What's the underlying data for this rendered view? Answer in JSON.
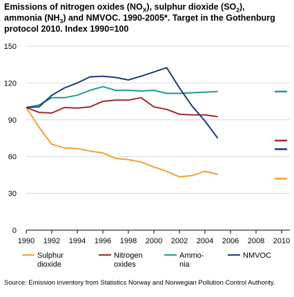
{
  "title": {
    "line1_a": "Emissions of nitrogen oxides (NO",
    "line1_sub_a": "X",
    "line1_b": "), sulphur dioxide (SO",
    "line1_sub_b": "2",
    "line1_c": "),",
    "line2_a": "ammonia (NH",
    "line2_sub": "3",
    "line2_b": ") and NMVOC. 1990-2005*. Target in the Gothenburg",
    "line3": "protocol 2010. Index 1990=100"
  },
  "source": "Source: Emission inventory from Statistics Norway and Norwegian Pollution Control Authority.",
  "chart_data": {
    "type": "line",
    "x": [
      1990,
      1991,
      1992,
      1993,
      1994,
      1995,
      1996,
      1997,
      1998,
      1999,
      2000,
      2001,
      2002,
      2003,
      2004,
      2005
    ],
    "xlim": [
      1990,
      2010
    ],
    "x_ticks": [
      "1990",
      "1992",
      "1994",
      "1996",
      "1998",
      "2000",
      "2002",
      "2004",
      "2006",
      "2008",
      "2010"
    ],
    "ylim": [
      0,
      150
    ],
    "y_ticks": [
      "0",
      "30",
      "60",
      "90",
      "120",
      "150"
    ],
    "grid": "horizontal",
    "legend_position": "bottom",
    "series": [
      {
        "name": "Sulphur dioxide",
        "legend_lines": [
          "Sulphur",
          "dioxide"
        ],
        "color": "#f0a030",
        "values": [
          100,
          84,
          70,
          67,
          66.5,
          64.5,
          63,
          58.5,
          57.5,
          55.5,
          51.5,
          48,
          43.5,
          44.5,
          48,
          45.5
        ],
        "target_2010": 42
      },
      {
        "name": "Nitrogen oxides",
        "legend_lines": [
          "Nitrogen",
          "oxides"
        ],
        "color": "#a0282d",
        "values": [
          100,
          96,
          95.5,
          100,
          99.5,
          100.5,
          105,
          106,
          106,
          108,
          100.5,
          98.5,
          94.5,
          94,
          94,
          92.5
        ],
        "target_2010": 73
      },
      {
        "name": "Ammonia",
        "legend_lines": [
          "Ammo-",
          "nia"
        ],
        "color": "#1f9a8c",
        "values": [
          100,
          102,
          108,
          108,
          110,
          114,
          117,
          114,
          114,
          113.5,
          114,
          111.5,
          111.5,
          112,
          112.5,
          113
        ],
        "target_2010": 113
      },
      {
        "name": "NMVOC",
        "legend_lines": [
          "NMVOC"
        ],
        "color": "#1c3a78",
        "values": [
          100,
          100.5,
          110,
          116,
          120,
          125,
          125.5,
          124.5,
          122.5,
          125.5,
          129,
          132.5,
          116,
          101,
          89,
          75
        ],
        "target_2010": 66
      }
    ]
  }
}
